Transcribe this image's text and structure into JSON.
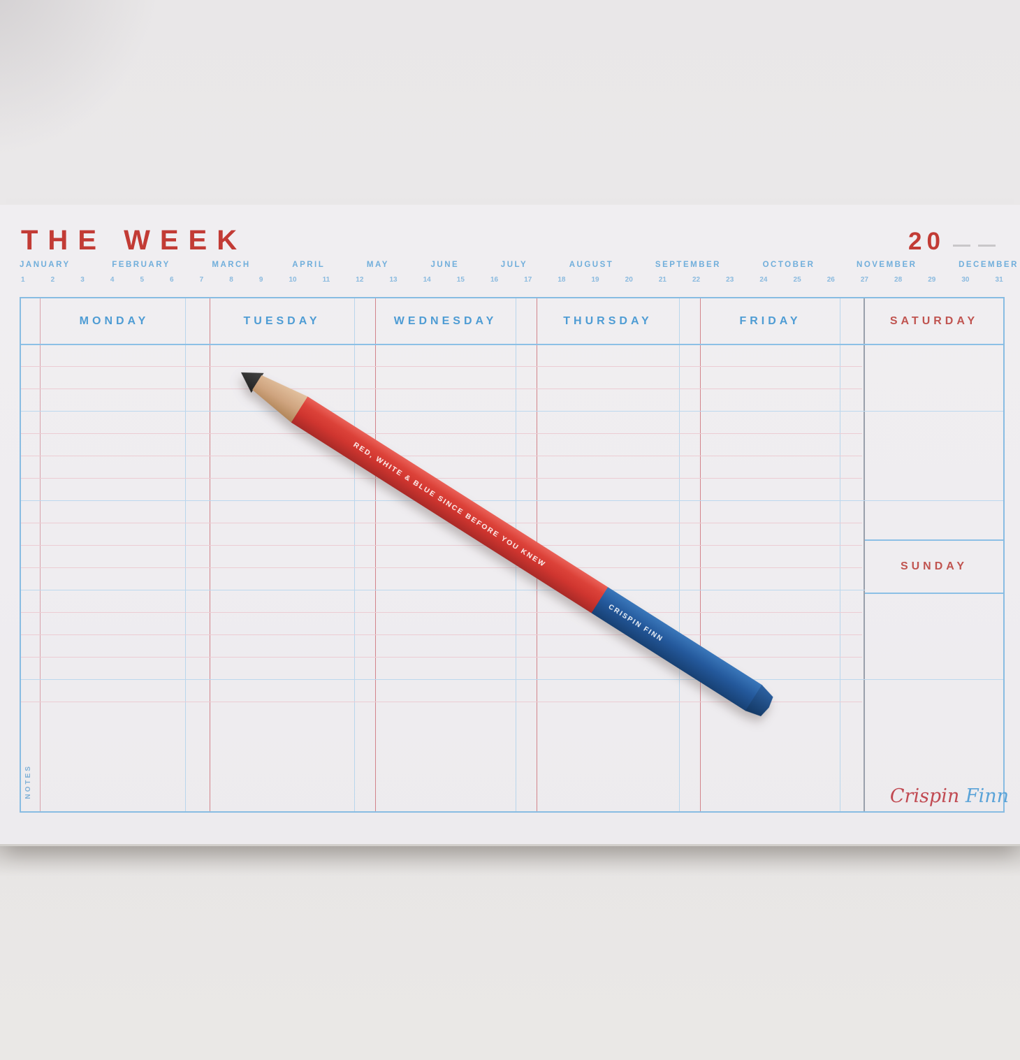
{
  "planner": {
    "title": "THE WEEK",
    "year_prefix": "20",
    "months": [
      "JANUARY",
      "FEBRUARY",
      "MARCH",
      "APRIL",
      "MAY",
      "JUNE",
      "JULY",
      "AUGUST",
      "SEPTEMBER",
      "OCTOBER",
      "NOVEMBER",
      "DECEMBER"
    ],
    "dates": [
      "1",
      "2",
      "3",
      "4",
      "5",
      "6",
      "7",
      "8",
      "9",
      "10",
      "11",
      "12",
      "13",
      "14",
      "15",
      "16",
      "17",
      "18",
      "19",
      "20",
      "21",
      "22",
      "23",
      "24",
      "25",
      "26",
      "27",
      "28",
      "29",
      "30",
      "31"
    ],
    "day_columns": [
      "MONDAY",
      "TUESDAY",
      "WEDNESDAY",
      "THURSDAY",
      "FRIDAY",
      "SATURDAY"
    ],
    "sunday_label": "SUNDAY",
    "notes_label": "NOTES",
    "signature_first": "Crispin",
    "signature_last": "Finn",
    "colors": {
      "title_red": "#c23b35",
      "weekday_blue": "#4e9cd4",
      "weekend_red": "#c05450",
      "month_blue": "#70aedb",
      "grid_border_blue": "#88bce2",
      "rule_pink": "#ecccd3",
      "rule_blue": "#bcd8ee",
      "column_red": "#d2848b",
      "weekend_divider_gray": "#99a0ab",
      "paper": "#efedf0"
    }
  },
  "pencil": {
    "slogan": "RED, WHITE & BLUE SINCE BEFORE YOU KNEW",
    "brand": "CRISPIN FINN",
    "body_red": "#cf352f",
    "body_blue": "#24599c"
  }
}
